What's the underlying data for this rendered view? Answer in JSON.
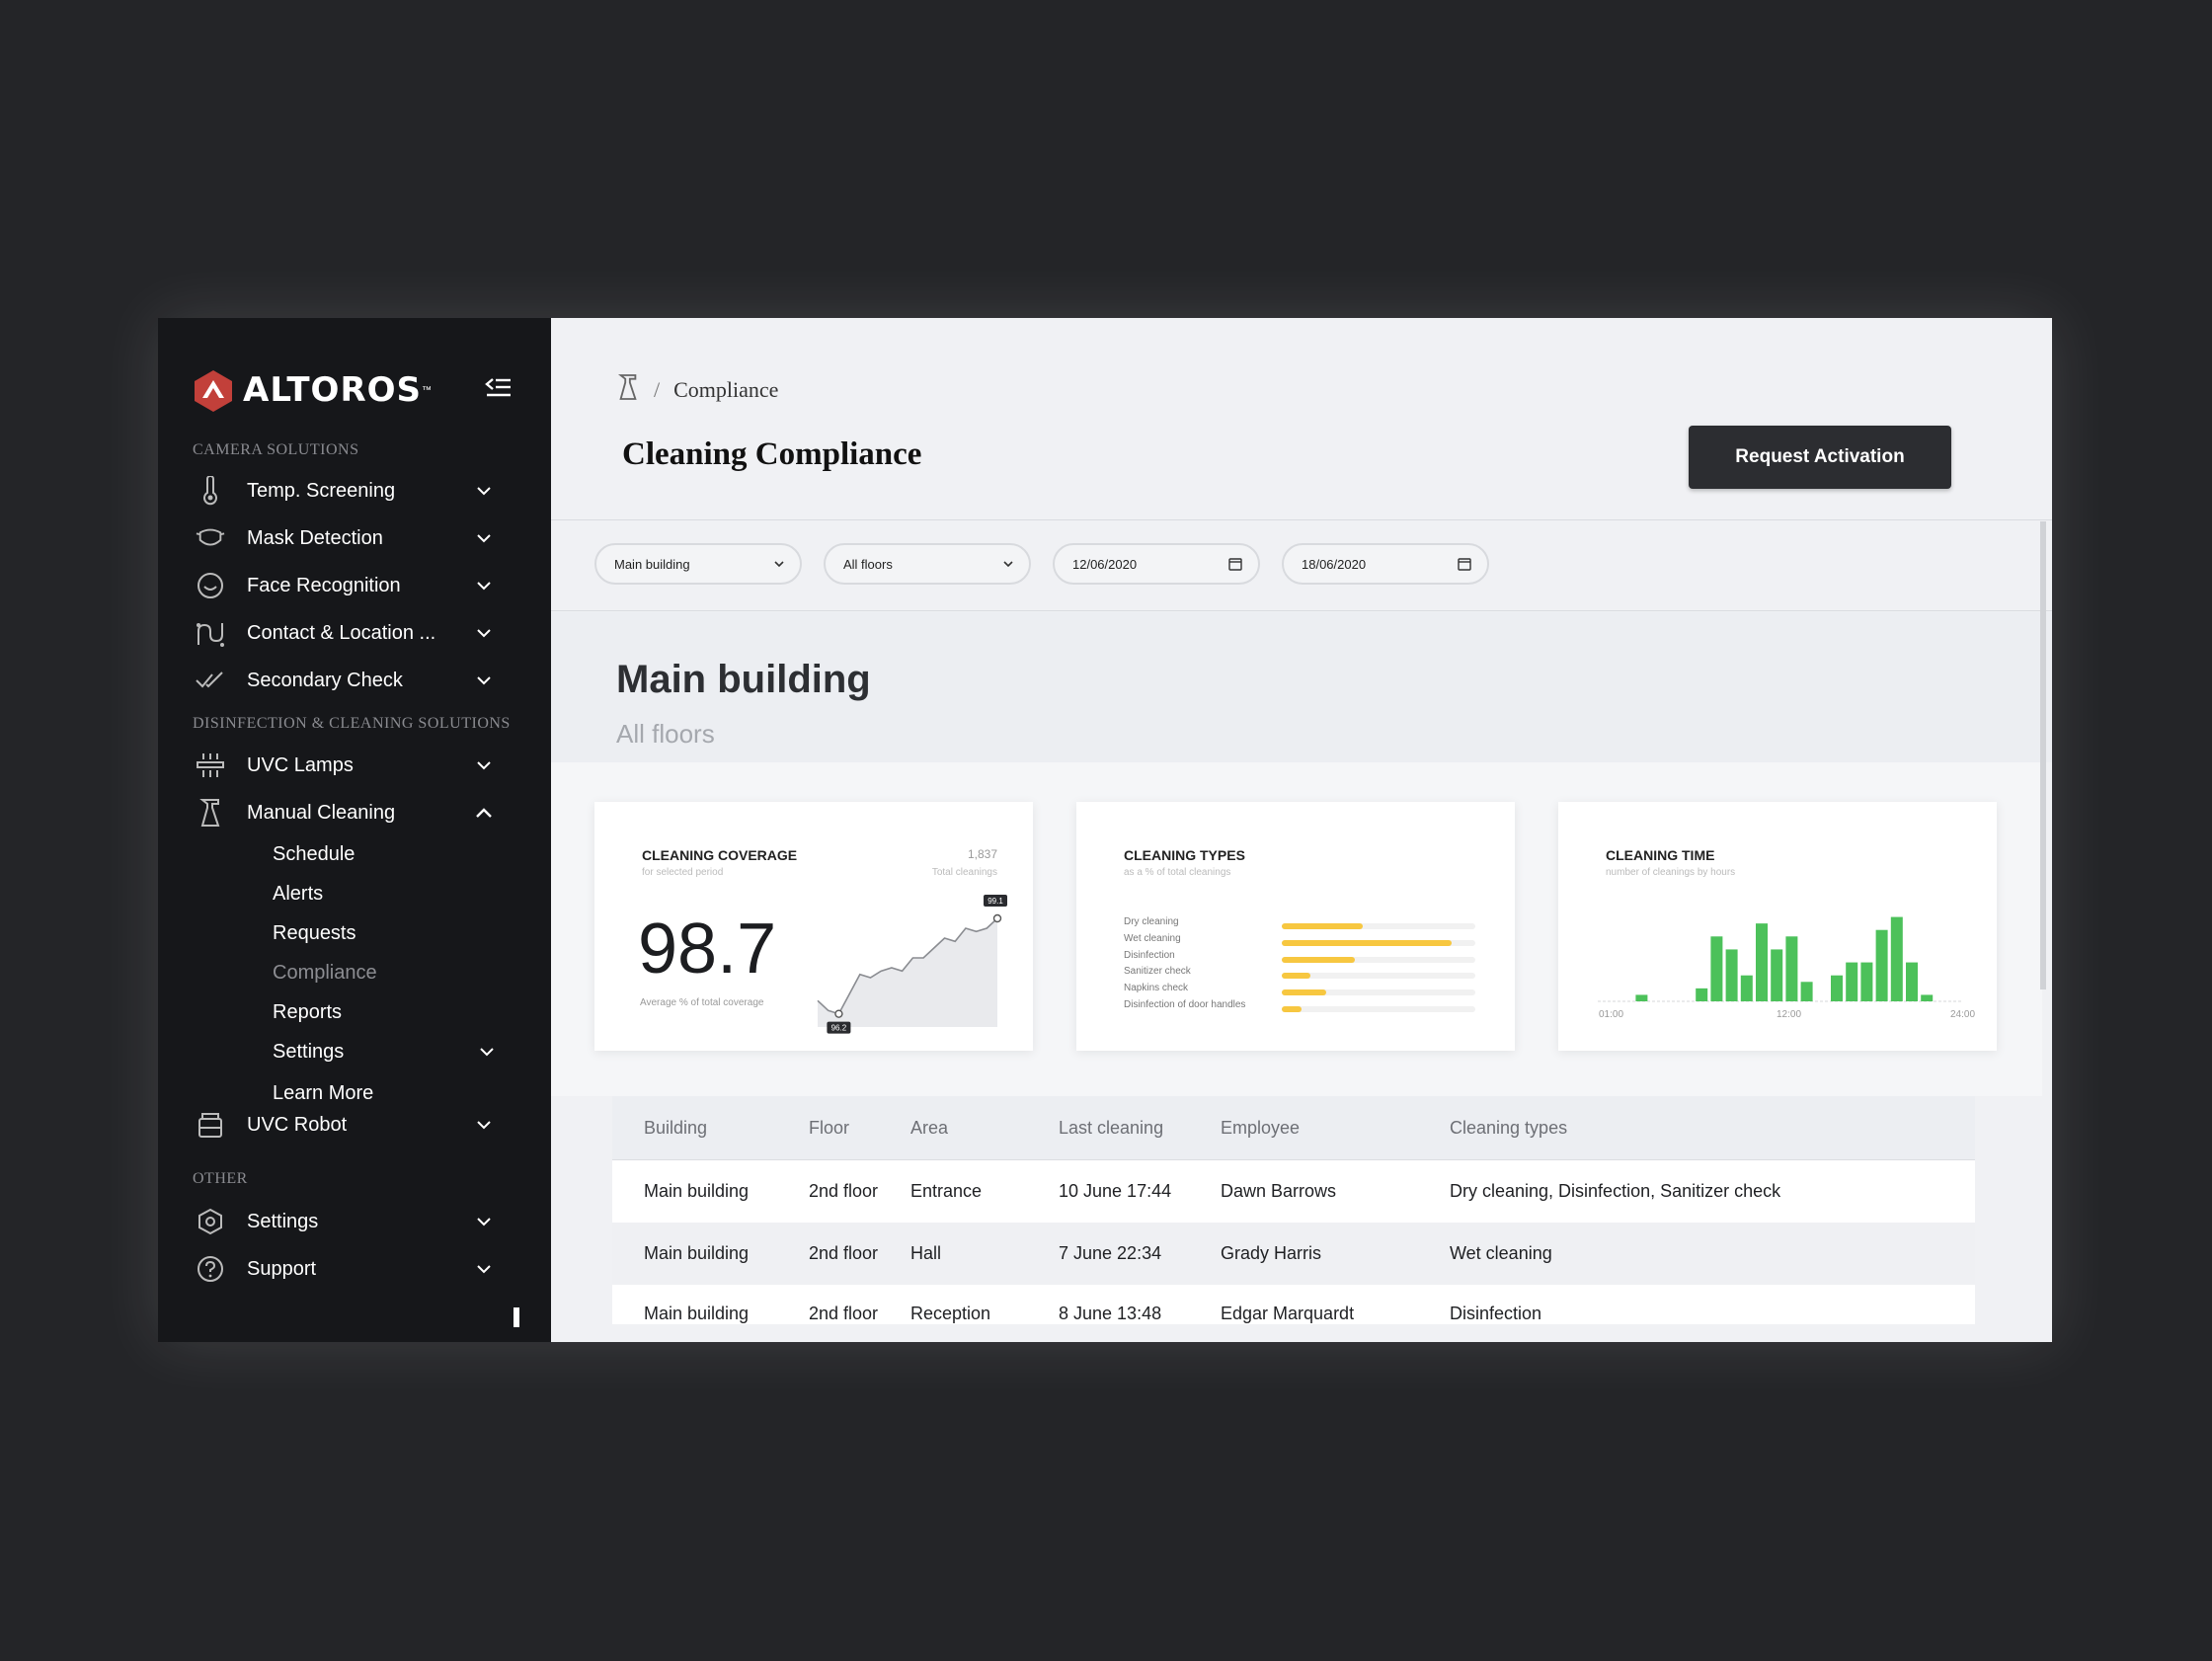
{
  "app": {
    "brand": "ALTOROS",
    "brand_tm": "™"
  },
  "sidebar": {
    "sections": [
      "CAMERA SOLUTIONS",
      "DISINFECTION & CLEANING SOLUTIONS",
      "OTHER"
    ],
    "items": [
      {
        "label": "Temp. Screening",
        "icon": "thermometer-icon"
      },
      {
        "label": "Mask Detection",
        "icon": "mask-icon"
      },
      {
        "label": "Face Recognition",
        "icon": "face-icon"
      },
      {
        "label": "Contact & Location ...",
        "icon": "location-icon"
      },
      {
        "label": "Secondary Check",
        "icon": "double-check-icon"
      },
      {
        "label": "UVC Lamps",
        "icon": "lamp-icon"
      },
      {
        "label": "Manual Cleaning",
        "icon": "spray-icon"
      },
      {
        "label": "UVC Robot",
        "icon": "robot-icon"
      },
      {
        "label": "Settings",
        "icon": "gear-icon"
      },
      {
        "label": "Support",
        "icon": "help-icon"
      }
    ],
    "submenu": [
      "Schedule",
      "Alerts",
      "Requests",
      "Compliance",
      "Reports",
      "Settings",
      "Learn More"
    ],
    "active_submenu": "Compliance"
  },
  "header": {
    "breadcrumb_sep": "/",
    "breadcrumb_current": "Compliance",
    "title": "Cleaning Compliance",
    "request_button": "Request Activation"
  },
  "filters": {
    "building": "Main building",
    "floor": "All floors",
    "date_from": "12/06/2020",
    "date_to": "18/06/2020"
  },
  "hero": {
    "title": "Main building",
    "subtitle": "All floors"
  },
  "cards": {
    "coverage": {
      "title": "CLEANING COVERAGE",
      "subtitle": "for selected period",
      "value": "98.7",
      "value_label": "Average % of total coverage",
      "total": "1,837",
      "total_label": "Total cleanings",
      "min_marker": "96.2",
      "max_marker": "99.1"
    },
    "types": {
      "title": "CLEANING TYPES",
      "subtitle": "as a % of total cleanings"
    },
    "time": {
      "title": "CLEANING TIME",
      "subtitle": "number of cleanings by hours",
      "axis": [
        "01:00",
        "12:00",
        "24:00"
      ]
    }
  },
  "chart_data": [
    {
      "type": "area",
      "title": "CLEANING COVERAGE",
      "x": [
        1,
        2,
        3,
        4,
        5,
        6,
        7,
        8,
        9,
        10,
        11,
        12,
        13,
        14,
        15,
        16,
        17,
        18
      ],
      "values": [
        96.6,
        96.3,
        96.2,
        96.8,
        97.4,
        97.3,
        97.5,
        97.6,
        97.5,
        97.9,
        97.9,
        98.2,
        98.5,
        98.4,
        98.8,
        98.7,
        98.8,
        99.1
      ],
      "ylim": [
        95.8,
        99.4
      ]
    },
    {
      "type": "bar",
      "title": "CLEANING TYPES",
      "categories": [
        "Dry cleaning",
        "Wet cleaning",
        "Disinfection",
        "Sanitizer check",
        "Napkins check",
        "Disinfection of door handles"
      ],
      "values": [
        42,
        88,
        38,
        15,
        23,
        10
      ],
      "ylim": [
        0,
        100
      ]
    },
    {
      "type": "bar",
      "title": "CLEANING TIME",
      "categories": [
        "01:00",
        "02:00",
        "03:00",
        "04:00",
        "05:00",
        "06:00",
        "07:00",
        "08:00",
        "09:00",
        "10:00",
        "11:00",
        "12:00",
        "13:00",
        "14:00",
        "15:00",
        "16:00",
        "17:00",
        "18:00",
        "19:00",
        "20:00",
        "21:00",
        "22:00",
        "23:00",
        "24:00"
      ],
      "values": [
        0,
        0,
        1,
        0,
        0,
        0,
        2,
        10,
        8,
        4,
        12,
        8,
        10,
        3,
        0,
        4,
        6,
        6,
        11,
        13,
        6,
        1,
        0,
        0
      ],
      "ylim": [
        0,
        14
      ]
    }
  ],
  "table": {
    "columns": [
      "Building",
      "Floor",
      "Area",
      "Last cleaning",
      "Employee",
      "Cleaning types"
    ],
    "rows": [
      [
        "Main building",
        "2nd floor",
        "Entrance",
        "10 June 17:44",
        "Dawn Barrows",
        "Dry cleaning, Disinfection, Sanitizer check"
      ],
      [
        "Main building",
        "2nd floor",
        "Hall",
        "7 June 22:34",
        "Grady Harris",
        "Wet cleaning"
      ],
      [
        "Main building",
        "2nd floor",
        "Reception",
        "8 June 13:48",
        "Edgar Marquardt",
        "Disinfection"
      ]
    ]
  },
  "colors": {
    "accent_green": "#4cc15a",
    "accent_yellow": "#f7c740",
    "logo_red": "#c2403a",
    "sidebar_bg": "#16171a",
    "button_bg": "#2c2d31"
  }
}
